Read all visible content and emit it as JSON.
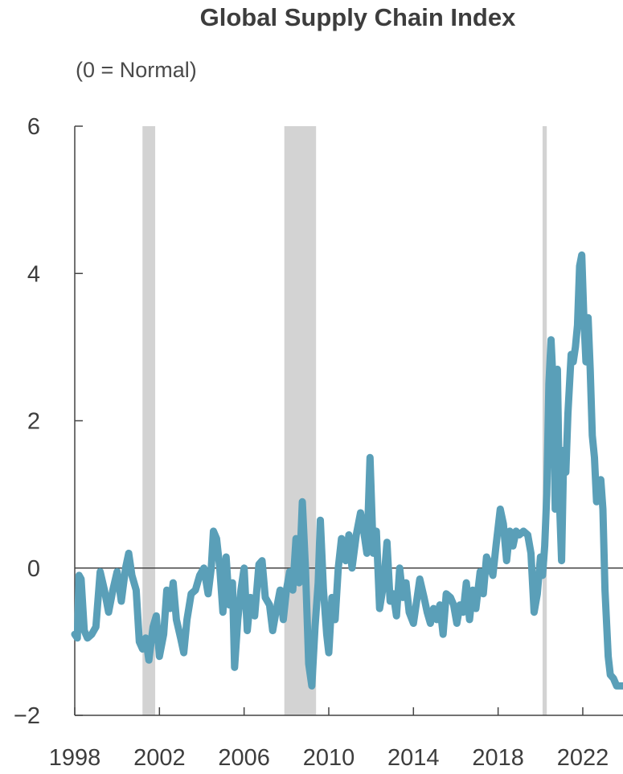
{
  "chart_data": {
    "type": "line",
    "title": "Global Supply Chain Index",
    "subtitle": "(0 = Normal)",
    "xlabel": "",
    "ylabel": "",
    "xlim": [
      1998.0,
      2023.9
    ],
    "ylim": [
      -2,
      6
    ],
    "x_ticks": [
      1998,
      2002,
      2006,
      2010,
      2014,
      2018,
      2022
    ],
    "y_ticks": [
      {
        "value": 6,
        "label": "6"
      },
      {
        "value": 4,
        "label": "4"
      },
      {
        "value": 2,
        "label": "2"
      },
      {
        "value": 0,
        "label": "0"
      },
      {
        "value": -2,
        "label": "−2"
      }
    ],
    "grid": false,
    "reference_line": 0,
    "shaded_periods": [
      [
        2001.2,
        2001.8
      ],
      [
        2007.9,
        2009.4
      ],
      [
        2020.1,
        2020.3
      ]
    ],
    "line_color": "#5a9fb8",
    "shade_color": "#d3d3d3",
    "series": [
      {
        "values": [
          [
            1998.0,
            -0.9
          ],
          [
            1998.12,
            -0.95
          ],
          [
            1998.2,
            -0.1
          ],
          [
            1998.3,
            -0.15
          ],
          [
            1998.45,
            -0.85
          ],
          [
            1998.6,
            -0.95
          ],
          [
            1998.8,
            -0.9
          ],
          [
            1999.0,
            -0.8
          ],
          [
            1999.2,
            -0.05
          ],
          [
            1999.4,
            -0.3
          ],
          [
            1999.6,
            -0.6
          ],
          [
            1999.8,
            -0.3
          ],
          [
            2000.0,
            -0.05
          ],
          [
            2000.2,
            -0.45
          ],
          [
            2000.4,
            0.0
          ],
          [
            2000.55,
            0.2
          ],
          [
            2000.7,
            -0.1
          ],
          [
            2000.9,
            -0.3
          ],
          [
            2001.05,
            -1.0
          ],
          [
            2001.2,
            -1.1
          ],
          [
            2001.35,
            -0.95
          ],
          [
            2001.5,
            -1.25
          ],
          [
            2001.7,
            -0.8
          ],
          [
            2001.85,
            -0.65
          ],
          [
            2002.0,
            -1.2
          ],
          [
            2002.2,
            -0.9
          ],
          [
            2002.35,
            -0.3
          ],
          [
            2002.5,
            -0.55
          ],
          [
            2002.65,
            -0.2
          ],
          [
            2002.8,
            -0.7
          ],
          [
            2003.0,
            -0.95
          ],
          [
            2003.15,
            -1.15
          ],
          [
            2003.3,
            -0.7
          ],
          [
            2003.5,
            -0.35
          ],
          [
            2003.7,
            -0.3
          ],
          [
            2003.9,
            -0.1
          ],
          [
            2004.1,
            0.0
          ],
          [
            2004.3,
            -0.35
          ],
          [
            2004.45,
            0.0
          ],
          [
            2004.55,
            0.5
          ],
          [
            2004.7,
            0.4
          ],
          [
            2004.85,
            0.0
          ],
          [
            2005.0,
            -0.6
          ],
          [
            2005.15,
            0.15
          ],
          [
            2005.3,
            -0.5
          ],
          [
            2005.45,
            -0.2
          ],
          [
            2005.55,
            -1.35
          ],
          [
            2005.7,
            -0.7
          ],
          [
            2005.85,
            -0.3
          ],
          [
            2006.0,
            0.0
          ],
          [
            2006.15,
            -0.85
          ],
          [
            2006.3,
            -0.4
          ],
          [
            2006.5,
            -0.65
          ],
          [
            2006.7,
            0.05
          ],
          [
            2006.85,
            0.1
          ],
          [
            2007.0,
            -0.4
          ],
          [
            2007.2,
            -0.5
          ],
          [
            2007.35,
            -0.85
          ],
          [
            2007.5,
            -0.6
          ],
          [
            2007.7,
            -0.3
          ],
          [
            2007.85,
            -0.7
          ],
          [
            2008.0,
            -0.3
          ],
          [
            2008.15,
            -0.05
          ],
          [
            2008.3,
            -0.3
          ],
          [
            2008.45,
            0.4
          ],
          [
            2008.6,
            -0.2
          ],
          [
            2008.75,
            0.9
          ],
          [
            2008.9,
            0.0
          ],
          [
            2009.05,
            -1.3
          ],
          [
            2009.2,
            -1.6
          ],
          [
            2009.35,
            -0.8
          ],
          [
            2009.5,
            -0.2
          ],
          [
            2009.6,
            0.65
          ],
          [
            2009.75,
            -0.3
          ],
          [
            2009.9,
            -0.9
          ],
          [
            2010.0,
            -1.15
          ],
          [
            2010.15,
            -0.4
          ],
          [
            2010.3,
            -0.7
          ],
          [
            2010.45,
            0.0
          ],
          [
            2010.6,
            0.4
          ],
          [
            2010.8,
            0.1
          ],
          [
            2010.95,
            0.45
          ],
          [
            2011.1,
            0.0
          ],
          [
            2011.3,
            0.45
          ],
          [
            2011.5,
            0.75
          ],
          [
            2011.65,
            0.5
          ],
          [
            2011.8,
            0.2
          ],
          [
            2011.95,
            1.5
          ],
          [
            2012.1,
            0.2
          ],
          [
            2012.25,
            0.5
          ],
          [
            2012.4,
            -0.55
          ],
          [
            2012.6,
            -0.2
          ],
          [
            2012.75,
            0.35
          ],
          [
            2012.9,
            -0.45
          ],
          [
            2013.05,
            -0.35
          ],
          [
            2013.2,
            -0.65
          ],
          [
            2013.35,
            0.0
          ],
          [
            2013.5,
            -0.4
          ],
          [
            2013.65,
            -0.2
          ],
          [
            2013.8,
            -0.6
          ],
          [
            2014.0,
            -0.75
          ],
          [
            2014.15,
            -0.45
          ],
          [
            2014.3,
            -0.15
          ],
          [
            2014.5,
            -0.4
          ],
          [
            2014.65,
            -0.6
          ],
          [
            2014.8,
            -0.75
          ],
          [
            2014.95,
            -0.55
          ],
          [
            2015.1,
            -0.7
          ],
          [
            2015.25,
            -0.5
          ],
          [
            2015.4,
            -0.9
          ],
          [
            2015.55,
            -0.35
          ],
          [
            2015.75,
            -0.4
          ],
          [
            2015.9,
            -0.5
          ],
          [
            2016.05,
            -0.75
          ],
          [
            2016.2,
            -0.5
          ],
          [
            2016.35,
            -0.6
          ],
          [
            2016.5,
            -0.2
          ],
          [
            2016.65,
            -0.7
          ],
          [
            2016.8,
            -0.3
          ],
          [
            2016.95,
            -0.55
          ],
          [
            2017.15,
            -0.05
          ],
          [
            2017.3,
            -0.35
          ],
          [
            2017.45,
            0.15
          ],
          [
            2017.6,
            0.05
          ],
          [
            2017.75,
            -0.1
          ],
          [
            2017.9,
            0.3
          ],
          [
            2018.1,
            0.8
          ],
          [
            2018.25,
            0.6
          ],
          [
            2018.4,
            0.1
          ],
          [
            2018.55,
            0.5
          ],
          [
            2018.7,
            0.3
          ],
          [
            2018.85,
            0.5
          ],
          [
            2019.0,
            0.45
          ],
          [
            2019.2,
            0.5
          ],
          [
            2019.4,
            0.45
          ],
          [
            2019.55,
            0.2
          ],
          [
            2019.7,
            -0.6
          ],
          [
            2019.85,
            -0.35
          ],
          [
            2020.0,
            0.15
          ],
          [
            2020.1,
            -0.1
          ],
          [
            2020.2,
            0.3
          ],
          [
            2020.3,
            1.0
          ],
          [
            2020.4,
            2.5
          ],
          [
            2020.5,
            3.1
          ],
          [
            2020.6,
            2.5
          ],
          [
            2020.7,
            0.8
          ],
          [
            2020.8,
            2.7
          ],
          [
            2020.9,
            0.9
          ],
          [
            2021.0,
            0.1
          ],
          [
            2021.1,
            1.6
          ],
          [
            2021.2,
            1.3
          ],
          [
            2021.3,
            2.1
          ],
          [
            2021.45,
            2.9
          ],
          [
            2021.55,
            2.8
          ],
          [
            2021.65,
            3.0
          ],
          [
            2021.75,
            3.3
          ],
          [
            2021.85,
            4.1
          ],
          [
            2021.95,
            4.25
          ],
          [
            2022.05,
            3.4
          ],
          [
            2022.15,
            2.8
          ],
          [
            2022.25,
            3.4
          ],
          [
            2022.35,
            2.7
          ],
          [
            2022.45,
            1.8
          ],
          [
            2022.55,
            1.5
          ],
          [
            2022.65,
            0.9
          ],
          [
            2022.75,
            0.95
          ],
          [
            2022.85,
            1.2
          ],
          [
            2022.95,
            0.8
          ],
          [
            2023.05,
            -0.3
          ],
          [
            2023.2,
            -1.2
          ],
          [
            2023.3,
            -1.45
          ],
          [
            2023.45,
            -1.5
          ],
          [
            2023.6,
            -1.6
          ],
          [
            2023.9,
            -1.6
          ]
        ]
      }
    ]
  }
}
